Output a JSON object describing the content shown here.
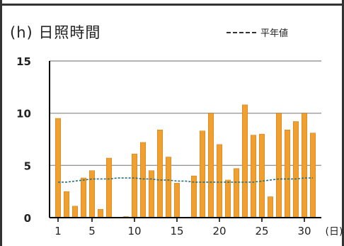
{
  "title": "(h) 日照時間",
  "legend": {
    "label": "平年値"
  },
  "colors": {
    "bar": "#f0a030",
    "bar_edge": "#c77810",
    "normal_line": "#2f6f78",
    "grid": "#9a9a9a",
    "axis": "#000000"
  },
  "chart_data": {
    "type": "bar",
    "title": "(h) 日照時間",
    "xlabel": "(日)",
    "ylabel": "(h)",
    "ylim": [
      0,
      15
    ],
    "xlim": [
      0,
      32
    ],
    "yticks": [
      0,
      5,
      10,
      15
    ],
    "xticks": [
      1,
      5,
      10,
      15,
      20,
      25,
      30
    ],
    "grid": true,
    "legend": "top-right",
    "categories": [
      1,
      2,
      3,
      4,
      5,
      6,
      7,
      8,
      9,
      10,
      11,
      12,
      13,
      14,
      15,
      16,
      17,
      18,
      19,
      20,
      21,
      22,
      23,
      24,
      25,
      26,
      27,
      28,
      29,
      30,
      31
    ],
    "series": [
      {
        "name": "",
        "type": "bar",
        "values": [
          9.5,
          2.5,
          1.1,
          3.8,
          4.5,
          0.8,
          5.7,
          0.0,
          0.1,
          6.1,
          7.2,
          4.5,
          8.4,
          5.8,
          3.3,
          0.0,
          4.0,
          8.3,
          10.0,
          7.0,
          3.6,
          4.7,
          10.8,
          7.9,
          8.0,
          2.0,
          10.0,
          8.4,
          9.2,
          10.0,
          8.1
        ]
      },
      {
        "name": "平年値",
        "type": "line",
        "values": [
          3.4,
          3.4,
          3.5,
          3.6,
          3.7,
          3.7,
          3.7,
          3.8,
          3.8,
          3.8,
          3.7,
          3.7,
          3.6,
          3.6,
          3.5,
          3.5,
          3.4,
          3.4,
          3.4,
          3.4,
          3.4,
          3.4,
          3.4,
          3.4,
          3.5,
          3.6,
          3.7,
          3.7,
          3.7,
          3.8,
          3.8
        ]
      }
    ]
  }
}
